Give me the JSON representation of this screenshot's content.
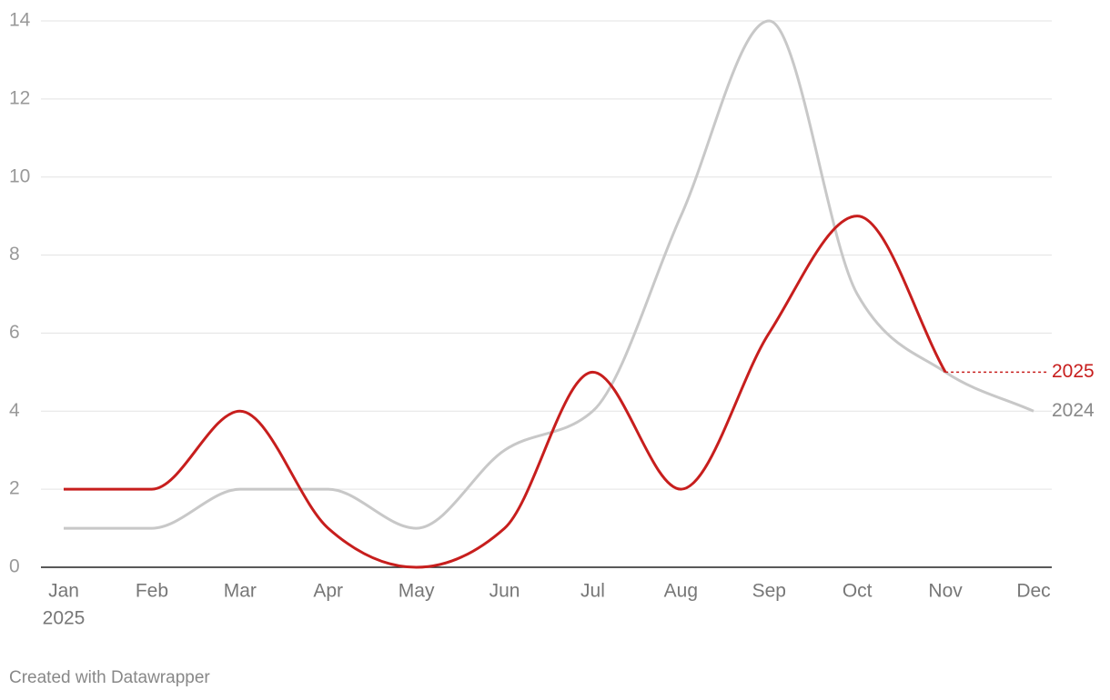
{
  "chart_data": {
    "type": "line",
    "categories": [
      "Jan",
      "Feb",
      "Mar",
      "Apr",
      "May",
      "Jun",
      "Jul",
      "Aug",
      "Sep",
      "Oct",
      "Nov",
      "Dec"
    ],
    "year_label": "2025",
    "series": [
      {
        "name": "2025",
        "color": "#c71e1d",
        "label_color": "#c71e1d",
        "values": [
          2,
          2,
          4,
          1,
          0,
          1,
          5,
          2,
          6,
          9,
          5,
          null
        ]
      },
      {
        "name": "2024",
        "color": "#c8c8c8",
        "label_color": "#888888",
        "values": [
          1,
          1,
          2,
          2,
          1,
          3,
          4,
          9,
          14,
          7,
          5,
          4
        ]
      }
    ],
    "ylim": [
      0,
      14
    ],
    "yticks": [
      0,
      2,
      4,
      6,
      8,
      10,
      12,
      14
    ],
    "grid": true,
    "credit": "Created with Datawrapper"
  }
}
